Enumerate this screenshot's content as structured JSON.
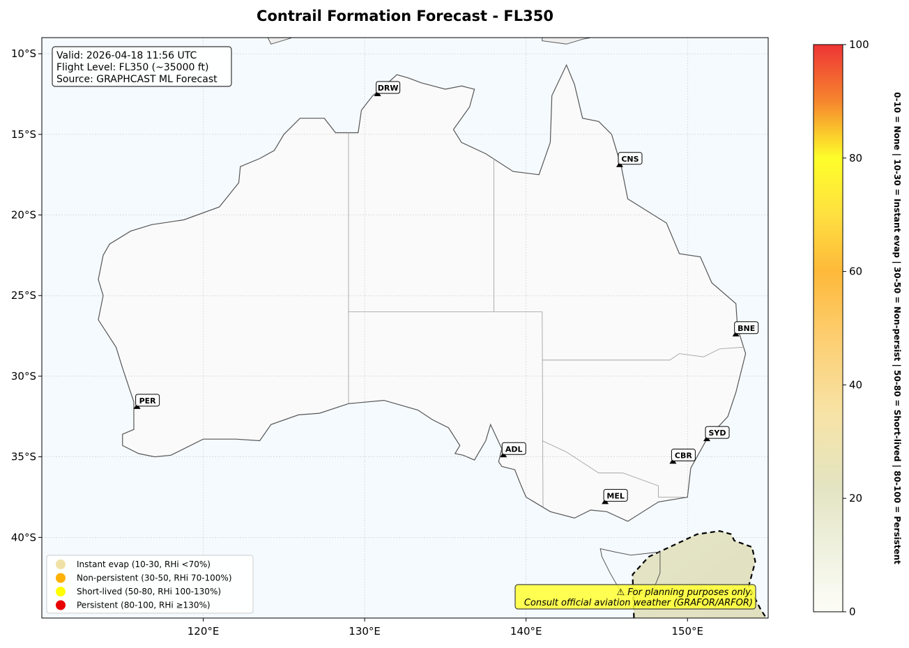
{
  "title": "Contrail Formation Forecast - FL350",
  "info_box": {
    "valid": "Valid: 2026-04-18 11:56 UTC",
    "flight_level": "Flight Level: FL350 (~35000 ft)",
    "source": "Source: GRAPHCAST ML Forecast"
  },
  "map": {
    "extent": {
      "lon": [
        110,
        155
      ],
      "lat": [
        -45,
        -9
      ]
    },
    "x_ticks": [
      "120°E",
      "130°E",
      "140°E",
      "150°E"
    ],
    "x_tick_values": [
      120,
      130,
      140,
      150
    ],
    "y_ticks": [
      "10°S",
      "15°S",
      "20°S",
      "25°S",
      "30°S",
      "35°S",
      "40°S"
    ],
    "y_tick_values": [
      -10,
      -15,
      -20,
      -25,
      -30,
      -35,
      -40
    ],
    "grid": true,
    "ocean_color": "#f5faff",
    "land_color": "#fafafa"
  },
  "airports": [
    {
      "code": "DRW",
      "lon": 130.8,
      "lat": -12.5
    },
    {
      "code": "CNS",
      "lon": 145.8,
      "lat": -16.9
    },
    {
      "code": "BNE",
      "lon": 153.0,
      "lat": -27.4
    },
    {
      "code": "SYD",
      "lon": 151.2,
      "lat": -33.9
    },
    {
      "code": "CBR",
      "lon": 149.1,
      "lat": -35.3
    },
    {
      "code": "MEL",
      "lon": 144.9,
      "lat": -37.8
    },
    {
      "code": "ADL",
      "lon": 138.6,
      "lat": -34.9
    },
    {
      "code": "PER",
      "lon": 115.9,
      "lat": -31.9
    }
  ],
  "legend": [
    {
      "label": "Instant evap (10-30, RHi <70%)",
      "color": "#f0e2a6"
    },
    {
      "label": "Non-persistent (30-50, RHi 70-100%)",
      "color": "#ffb000"
    },
    {
      "label": "Short-lived (50-80, RHi 100-130%)",
      "color": "#ffff00"
    },
    {
      "label": "Persistent (80-100, RHi ≥130%)",
      "color": "#e80000"
    }
  ],
  "disclaimer": {
    "line1": "⚠ For planning purposes only.",
    "line2": "Consult official aviation weather (GRAFOR/ARFOR)",
    "color": "#ffff33"
  },
  "colorbar": {
    "min": 0,
    "max": 100,
    "ticks": [
      "0",
      "20",
      "40",
      "60",
      "80",
      "100"
    ],
    "tick_values": [
      0,
      20,
      40,
      60,
      80,
      100
    ],
    "label": "0-10 = None  |  10-30 = Instant evap  |  30-50 = Non-persist  |  50-80 = Short-lived  |  80-100 = Persistent"
  }
}
